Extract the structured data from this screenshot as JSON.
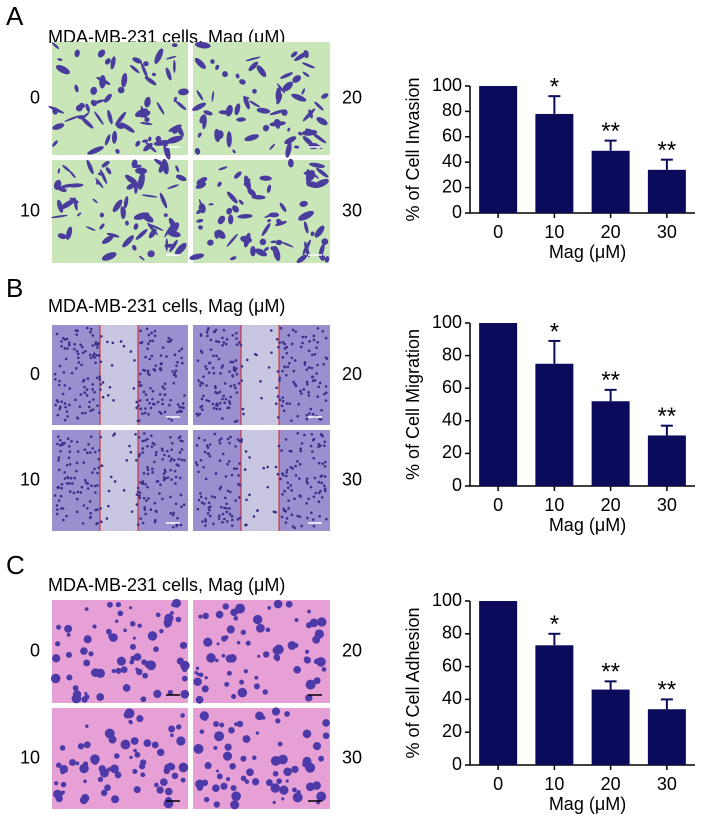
{
  "panels": [
    {
      "label": "A",
      "image_title": "MDA-MB-231 cells, Mag (μM)",
      "image_labels": [
        "0",
        "20",
        "10",
        "30"
      ]
    },
    {
      "label": "B",
      "image_title": "MDA-MB-231 cells, Mag (μM)",
      "image_labels": [
        "0",
        "20",
        "10",
        "30"
      ]
    },
    {
      "label": "C",
      "image_title": "MDA-MB-231 cells, Mag (μM)",
      "image_labels": [
        "0",
        "20",
        "10",
        "30"
      ]
    }
  ],
  "chart_data": [
    {
      "type": "bar",
      "x_label": "Mag (μM)",
      "y_label": "% of Cell Invasion",
      "categories": [
        "0",
        "10",
        "20",
        "30"
      ],
      "values": [
        100,
        78,
        49,
        34
      ],
      "errors": [
        null,
        14,
        8,
        8
      ],
      "significance": [
        null,
        "*",
        "**",
        "**"
      ],
      "color": "#0b0b5c",
      "ylim": [
        0,
        100
      ],
      "yticks": [
        0,
        20,
        40,
        60,
        80,
        100
      ]
    },
    {
      "type": "bar",
      "x_label": "Mag (μM)",
      "y_label": "% of Cell Migration",
      "categories": [
        "0",
        "10",
        "20",
        "30"
      ],
      "values": [
        100,
        75,
        52,
        31
      ],
      "errors": [
        null,
        14,
        7,
        6
      ],
      "significance": [
        null,
        "*",
        "**",
        "**"
      ],
      "color": "#0b0b5c",
      "ylim": [
        0,
        100
      ],
      "yticks": [
        0,
        20,
        40,
        60,
        80,
        100
      ]
    },
    {
      "type": "bar",
      "x_label": "Mag (μM)",
      "y_label": "% of Cell Adhesion",
      "categories": [
        "0",
        "10",
        "20",
        "30"
      ],
      "values": [
        100,
        73,
        46,
        34
      ],
      "errors": [
        null,
        7,
        5,
        6
      ],
      "significance": [
        null,
        "*",
        "**",
        "**"
      ],
      "color": "#0b0b5c",
      "ylim": [
        0,
        100
      ],
      "yticks": [
        0,
        20,
        40,
        60,
        80,
        100
      ]
    }
  ]
}
